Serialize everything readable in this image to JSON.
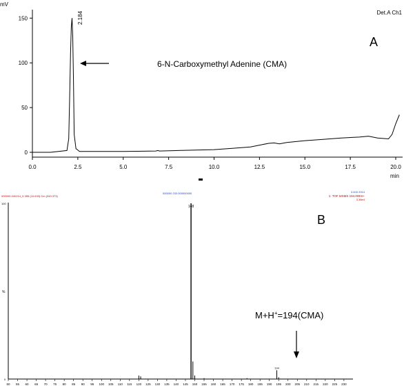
{
  "panels": {
    "a_label": "A",
    "b_label": "B"
  },
  "chromatogram": {
    "y_unit": "mV",
    "channel": "Det.A Ch1",
    "x_unit": "min",
    "peak_label": "2.184",
    "annotation": "6-N-Carboxymethyl Adenine (CMA)"
  },
  "mass_spectrum": {
    "header_left": "000000-040214_5 355 (10.633) Cm (349:373)",
    "header_center": "000000 233 000000000",
    "header_right_1": "3.400 2014",
    "header_right_2": "1: TOF MSMS 194.00ES+",
    "header_right_3": "3.36e4",
    "y_top": "100",
    "y_mid": "%",
    "y_bottom": "0",
    "peak_label_main": "148",
    "peak_label_194": "194",
    "annotation": "M+H+=194(CMA)"
  },
  "chart_data": [
    {
      "type": "line",
      "title": "",
      "xlabel": "min",
      "ylabel": "mV",
      "xlim": [
        0,
        20
      ],
      "ylim": [
        0,
        160
      ],
      "xticks": [
        0,
        2.5,
        5,
        7.5,
        10,
        12.5,
        15,
        17.5,
        20
      ],
      "xtick_labels": [
        "0.0",
        "2.5",
        "5.0",
        "7.5",
        "10.0",
        "12.5",
        "15.0",
        "17.5",
        "20.0"
      ],
      "yticks": [
        0,
        50,
        100,
        150
      ],
      "ytick_labels": [
        "0",
        "50",
        "100",
        "150"
      ],
      "series": [
        {
          "x": [
            0,
            1.0,
            1.9,
            2.0,
            2.05,
            2.1,
            2.14,
            2.184,
            2.22,
            2.26,
            2.3,
            2.4,
            2.48,
            2.52,
            2.6,
            3.0,
            5.0,
            6.8,
            6.9,
            7.0,
            8.0,
            10.0,
            11.0,
            12.0,
            12.5,
            13.0,
            13.3,
            13.6,
            14.0,
            15.0,
            16.0,
            17.0,
            18.0,
            18.5,
            19.0,
            19.6,
            19.8,
            20.0,
            20.2
          ],
          "y": [
            0,
            0,
            2,
            15,
            60,
            110,
            140,
            150,
            130,
            80,
            20,
            4,
            3,
            2,
            1,
            1,
            1,
            1.5,
            2,
            1.5,
            2,
            3,
            4.5,
            6,
            8,
            10,
            10.5,
            9.5,
            11,
            13,
            14.5,
            16,
            17,
            18,
            16,
            15,
            20,
            32,
            42
          ]
        }
      ]
    },
    {
      "type": "bar",
      "title": "",
      "xlabel": "",
      "ylabel": "%",
      "xlim": [
        50,
        233
      ],
      "ylim": [
        0,
        100
      ],
      "xticks": [
        50,
        55,
        60,
        65,
        70,
        75,
        80,
        85,
        90,
        95,
        100,
        105,
        110,
        115,
        120,
        125,
        130,
        135,
        140,
        145,
        150,
        155,
        160,
        165,
        170,
        175,
        180,
        185,
        190,
        195,
        200,
        205,
        210,
        215,
        220,
        225,
        230
      ],
      "xtick_labels": [
        "50",
        "55",
        "60",
        "65",
        "70",
        "75",
        "80",
        "85",
        "90",
        "95",
        "100",
        "105",
        "110",
        "115",
        "120",
        "125",
        "130",
        "135",
        "140",
        "145",
        "150",
        "155",
        "160",
        "165",
        "170",
        "175",
        "180",
        "185",
        "190",
        "195",
        "200",
        "205",
        "210",
        "215",
        "220",
        "225",
        "230"
      ],
      "series": [
        {
          "x": [
            120,
            121,
            148,
            149,
            150,
            155,
            178,
            194,
            195
          ],
          "y": [
            2,
            1.5,
            100,
            10,
            2,
            0.5,
            0.5,
            5,
            1
          ]
        }
      ]
    }
  ]
}
